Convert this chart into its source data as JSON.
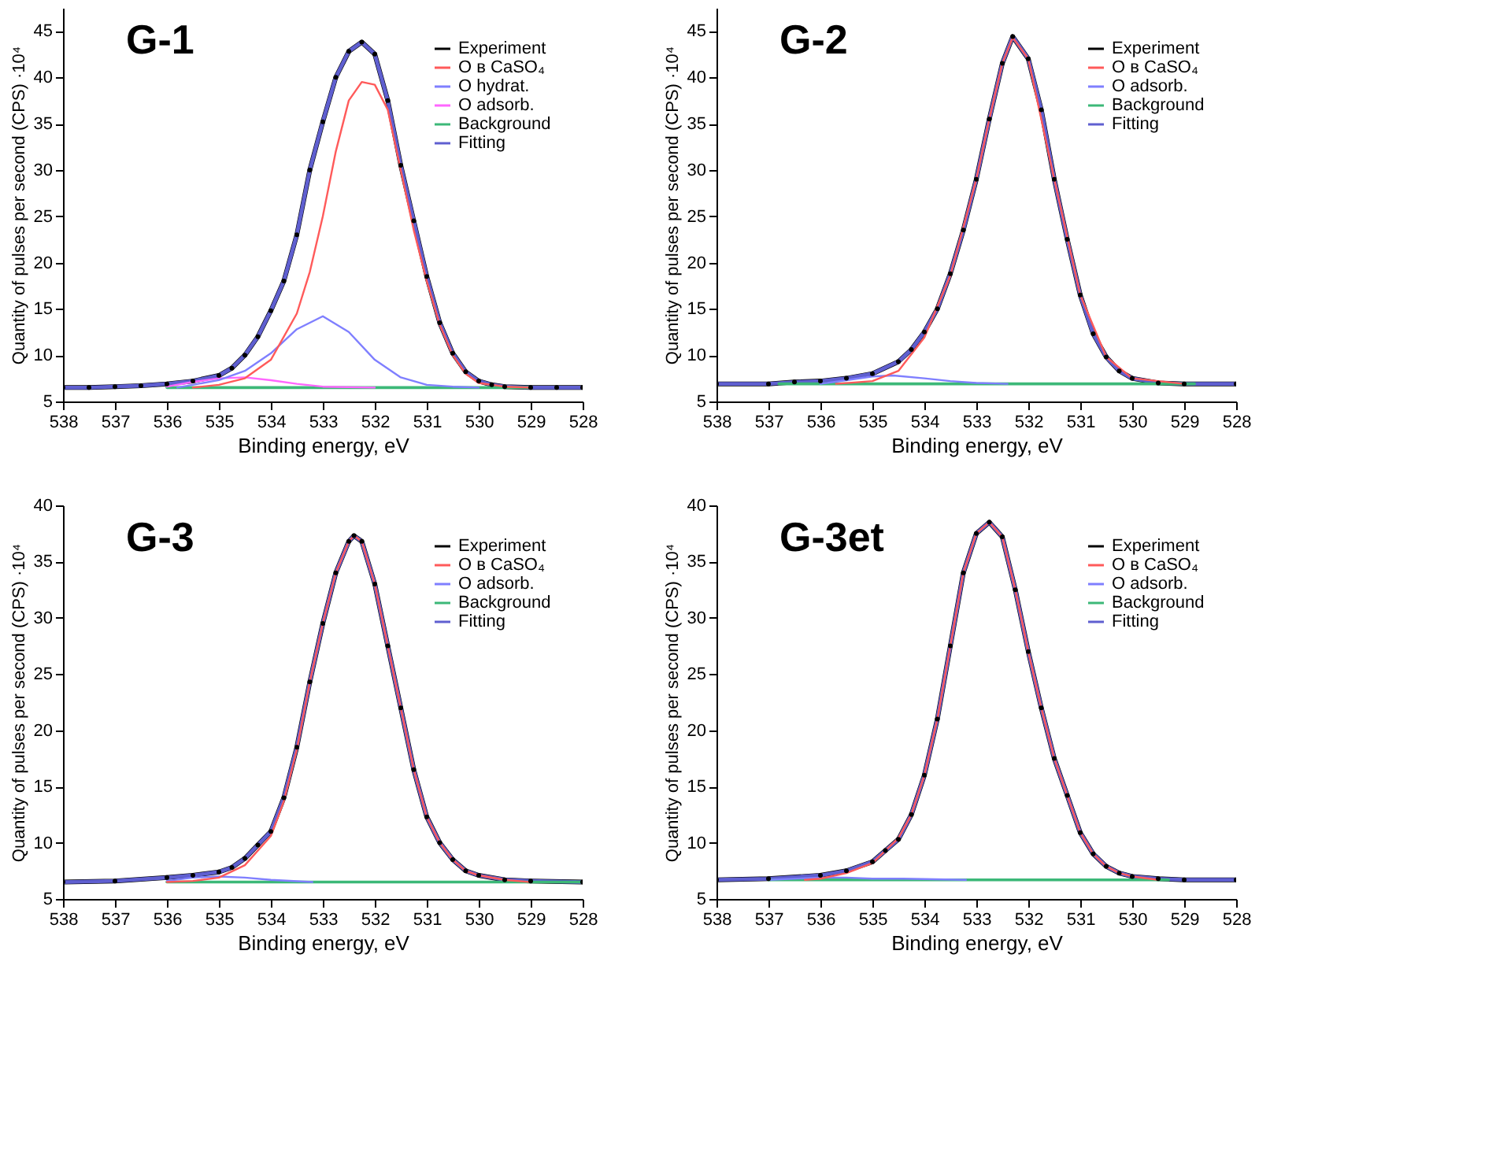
{
  "chart_data": [
    {
      "type": "line",
      "title": "G-1",
      "xlabel": "Binding energy, eV",
      "ylabel": "Quantity of pulses per second  (CPS) ·10⁴",
      "xlim": [
        538,
        528
      ],
      "xticks": [
        538,
        537,
        536,
        535,
        534,
        533,
        532,
        531,
        530,
        529,
        528
      ],
      "ylim": [
        5,
        47.5
      ],
      "yticks": [
        5,
        10,
        15,
        20,
        25,
        30,
        35,
        40,
        45
      ],
      "grid": false,
      "legend": "top right",
      "series": [
        {
          "name": "Experiment",
          "color": "#000000",
          "marker": "circle",
          "x": [
            538,
            537.5,
            537,
            536.5,
            536,
            535.5,
            535,
            534.75,
            534.5,
            534.25,
            534,
            533.75,
            533.5,
            533.25,
            533,
            532.75,
            532.5,
            532.25,
            532,
            531.75,
            531.5,
            531.25,
            531,
            530.75,
            530.5,
            530.25,
            530,
            529.75,
            529.5,
            529,
            528.5,
            528
          ],
          "values": [
            6.5,
            6.5,
            6.6,
            6.7,
            6.9,
            7.2,
            7.8,
            8.6,
            10.0,
            12.0,
            14.8,
            18.0,
            23.0,
            30.0,
            35.2,
            40.0,
            42.8,
            43.8,
            42.5,
            37.5,
            30.5,
            24.5,
            18.5,
            13.5,
            10.2,
            8.2,
            7.2,
            6.8,
            6.6,
            6.5,
            6.5,
            6.5
          ]
        },
        {
          "name": "O в CaSO₄",
          "color": "#ff5a5a",
          "marker": "none",
          "x": [
            535.5,
            535,
            534.5,
            534,
            533.5,
            533.25,
            533,
            532.75,
            532.5,
            532.25,
            532,
            531.75,
            531.5,
            531.25,
            531,
            530.75,
            530.5,
            530.25,
            530,
            529.5,
            529
          ],
          "values": [
            6.5,
            6.8,
            7.5,
            9.5,
            14.5,
            19.0,
            25.0,
            32.0,
            37.5,
            39.5,
            39.2,
            36.5,
            30.0,
            23.5,
            18.0,
            13.3,
            10.0,
            8.0,
            7.0,
            6.6,
            6.5
          ]
        },
        {
          "name": "O hydrat.",
          "color": "#7f7fff",
          "marker": "none",
          "x": [
            535.8,
            535,
            534.5,
            534,
            533.5,
            533,
            532.5,
            532,
            531.5,
            531,
            530.5,
            530
          ],
          "values": [
            6.5,
            7.3,
            8.3,
            10.2,
            12.8,
            14.2,
            12.5,
            9.5,
            7.6,
            6.8,
            6.6,
            6.5
          ]
        },
        {
          "name": "O adsorb.",
          "color": "#ff66ff",
          "marker": "none",
          "x": [
            536,
            535.5,
            535,
            534.5,
            534,
            533.5,
            533,
            532
          ],
          "values": [
            6.6,
            7.1,
            7.5,
            7.6,
            7.3,
            6.9,
            6.6,
            6.5
          ]
        },
        {
          "name": "Background",
          "color": "#3cb878",
          "marker": "none",
          "x": [
            536,
            529
          ],
          "values": [
            6.5,
            6.5
          ]
        },
        {
          "name": "Fitting",
          "color": "#5f5fd0",
          "marker": "none",
          "x": [
            538,
            537.5,
            537,
            536.5,
            536,
            535.5,
            535,
            534.75,
            534.5,
            534.25,
            534,
            533.75,
            533.5,
            533.25,
            533,
            532.75,
            532.5,
            532.25,
            532,
            531.75,
            531.5,
            531.25,
            531,
            530.75,
            530.5,
            530.25,
            530,
            529.75,
            529.5,
            529,
            528.5,
            528
          ],
          "values": [
            6.5,
            6.5,
            6.6,
            6.7,
            6.9,
            7.2,
            7.8,
            8.6,
            10.0,
            12.0,
            14.8,
            18.0,
            23.0,
            30.0,
            35.2,
            40.0,
            42.8,
            43.8,
            42.5,
            37.5,
            30.5,
            24.5,
            18.5,
            13.5,
            10.2,
            8.2,
            7.2,
            6.8,
            6.6,
            6.5,
            6.5,
            6.5
          ]
        }
      ]
    },
    {
      "type": "line",
      "title": "G-2",
      "xlabel": "Binding energy, eV",
      "ylabel": "Quantity of pulses per second  (CPS) ·10⁴",
      "xlim": [
        538,
        528
      ],
      "xticks": [
        538,
        537,
        536,
        535,
        534,
        533,
        532,
        531,
        530,
        529,
        528
      ],
      "ylim": [
        5,
        47.5
      ],
      "yticks": [
        5,
        10,
        15,
        20,
        25,
        30,
        35,
        40,
        45
      ],
      "grid": false,
      "legend": "top right",
      "series": [
        {
          "name": "Experiment",
          "color": "#000000",
          "marker": "circle",
          "x": [
            538,
            537,
            536.5,
            536,
            535.5,
            535,
            534.5,
            534.25,
            534,
            533.75,
            533.5,
            533.25,
            533,
            532.75,
            532.5,
            532.3,
            532,
            531.75,
            531.5,
            531.25,
            531,
            530.75,
            530.5,
            530.25,
            530,
            529.5,
            529,
            528
          ],
          "values": [
            6.9,
            6.9,
            7.1,
            7.2,
            7.5,
            8.0,
            9.3,
            10.6,
            12.5,
            15.0,
            18.8,
            23.5,
            29.0,
            35.5,
            41.5,
            44.4,
            42.0,
            36.5,
            29.0,
            22.5,
            16.5,
            12.3,
            9.8,
            8.3,
            7.5,
            7.0,
            6.9,
            6.9
          ]
        },
        {
          "name": "O в CaSO₄",
          "color": "#ff5a5a",
          "marker": "none",
          "x": [
            535.7,
            535,
            534.5,
            534,
            533.5,
            533,
            532.75,
            532.5,
            532.3,
            532,
            531.5,
            531,
            530.5,
            530,
            529
          ],
          "values": [
            6.9,
            7.2,
            8.3,
            11.9,
            18.6,
            29.0,
            35.5,
            41.5,
            44.3,
            42.0,
            29.0,
            16.5,
            9.8,
            7.5,
            6.9
          ]
        },
        {
          "name": "O adsorb.",
          "color": "#7f7fff",
          "marker": "none",
          "x": [
            536,
            535.5,
            535,
            534.6,
            534,
            533.5,
            533,
            532.4
          ],
          "values": [
            6.9,
            7.3,
            7.7,
            7.8,
            7.5,
            7.2,
            7.0,
            6.9
          ]
        },
        {
          "name": "Background",
          "color": "#3cb878",
          "marker": "none",
          "x": [
            536.8,
            528.8
          ],
          "values": [
            6.9,
            6.9
          ]
        },
        {
          "name": "Fitting",
          "color": "#5f5fd0",
          "marker": "none",
          "x": [
            538,
            537,
            536.5,
            536,
            535.5,
            535,
            534.5,
            534.25,
            534,
            533.75,
            533.5,
            533.25,
            533,
            532.75,
            532.5,
            532.3,
            532,
            531.75,
            531.5,
            531.25,
            531,
            530.75,
            530.5,
            530.25,
            530,
            529.5,
            529,
            528
          ],
          "values": [
            6.9,
            6.9,
            7.1,
            7.2,
            7.5,
            8.0,
            9.3,
            10.6,
            12.5,
            15.0,
            18.8,
            23.5,
            29.0,
            35.5,
            41.5,
            44.4,
            42.0,
            36.5,
            29.0,
            22.5,
            16.5,
            12.3,
            9.8,
            8.3,
            7.5,
            7.0,
            6.9,
            6.9
          ]
        }
      ]
    },
    {
      "type": "line",
      "title": "G-3",
      "xlabel": "Binding energy, eV",
      "ylabel": "Quantity of pulses per second  (CPS) ·10⁴",
      "xlim": [
        538,
        528
      ],
      "xticks": [
        538,
        537,
        536,
        535,
        534,
        533,
        532,
        531,
        530,
        529,
        528
      ],
      "ylim": [
        5,
        40
      ],
      "yticks": [
        5,
        10,
        15,
        20,
        25,
        30,
        35,
        40
      ],
      "grid": false,
      "legend": "top right",
      "series": [
        {
          "name": "Experiment",
          "color": "#000000",
          "marker": "circle",
          "x": [
            538,
            537,
            536,
            535.5,
            535,
            534.75,
            534.5,
            534.25,
            534,
            533.75,
            533.5,
            533.25,
            533,
            532.75,
            532.5,
            532.4,
            532.25,
            532,
            531.75,
            531.5,
            531.25,
            531,
            530.75,
            530.5,
            530.25,
            530,
            529.5,
            529,
            528
          ],
          "values": [
            6.5,
            6.6,
            6.9,
            7.1,
            7.4,
            7.8,
            8.6,
            9.8,
            11.0,
            14.0,
            18.5,
            24.3,
            29.5,
            34.0,
            36.8,
            37.3,
            36.8,
            33.0,
            27.5,
            22.0,
            16.5,
            12.3,
            10.0,
            8.5,
            7.5,
            7.1,
            6.7,
            6.6,
            6.5
          ]
        },
        {
          "name": "O в CaSO₄",
          "color": "#ff5a5a",
          "marker": "none",
          "x": [
            536,
            535.5,
            535,
            534.5,
            534,
            533.75,
            533.5,
            533.25,
            533,
            532.75,
            532.5,
            532.4,
            532.25,
            532,
            531.75,
            531.5,
            531.25,
            531,
            530.75,
            530.5,
            530.25,
            530,
            529.5,
            529
          ],
          "values": [
            6.5,
            6.6,
            6.9,
            8.0,
            10.6,
            13.7,
            18.3,
            24.3,
            29.5,
            34.0,
            36.8,
            37.3,
            36.8,
            33.0,
            27.5,
            22.0,
            16.5,
            12.3,
            10.0,
            8.5,
            7.5,
            7.1,
            6.7,
            6.5
          ]
        },
        {
          "name": "O adsorb.",
          "color": "#7f7fff",
          "marker": "none",
          "x": [
            536,
            535.5,
            535,
            534.5,
            534,
            533.2
          ],
          "values": [
            6.6,
            6.9,
            7.0,
            6.9,
            6.7,
            6.5
          ]
        },
        {
          "name": "Background",
          "color": "#3cb878",
          "marker": "none",
          "x": [
            536,
            528
          ],
          "values": [
            6.5,
            6.5
          ]
        },
        {
          "name": "Fitting",
          "color": "#5f5fd0",
          "marker": "none",
          "x": [
            538,
            537,
            536,
            535.5,
            535,
            534.75,
            534.5,
            534.25,
            534,
            533.75,
            533.5,
            533.25,
            533,
            532.75,
            532.5,
            532.4,
            532.25,
            532,
            531.75,
            531.5,
            531.25,
            531,
            530.75,
            530.5,
            530.25,
            530,
            529.5,
            529,
            528
          ],
          "values": [
            6.5,
            6.6,
            6.9,
            7.1,
            7.4,
            7.8,
            8.6,
            9.8,
            11.0,
            14.0,
            18.5,
            24.3,
            29.5,
            34.0,
            36.8,
            37.3,
            36.8,
            33.0,
            27.5,
            22.0,
            16.5,
            12.3,
            10.0,
            8.5,
            7.5,
            7.1,
            6.7,
            6.6,
            6.5
          ]
        }
      ]
    },
    {
      "type": "line",
      "title": "G-3et",
      "xlabel": "Binding energy, eV",
      "ylabel": "Quantity of pulses per second  (CPS) ·10⁴",
      "xlim": [
        538,
        528
      ],
      "xticks": [
        538,
        537,
        536,
        535,
        534,
        533,
        532,
        531,
        530,
        529,
        528
      ],
      "ylim": [
        5,
        40
      ],
      "yticks": [
        5,
        10,
        15,
        20,
        25,
        30,
        35,
        40
      ],
      "grid": false,
      "legend": "top right",
      "series": [
        {
          "name": "Experiment",
          "color": "#000000",
          "marker": "circle",
          "x": [
            538,
            537,
            536,
            535.5,
            535,
            534.75,
            534.5,
            534.25,
            534,
            533.75,
            533.5,
            533.25,
            533,
            532.75,
            532.5,
            532.25,
            532,
            531.75,
            531.5,
            531.25,
            531,
            530.75,
            530.5,
            530.25,
            530,
            529.5,
            529,
            528
          ],
          "values": [
            6.7,
            6.8,
            7.1,
            7.5,
            8.3,
            9.3,
            10.3,
            12.5,
            16.0,
            21.0,
            27.5,
            34.0,
            37.5,
            38.5,
            37.2,
            32.5,
            27.0,
            22.0,
            17.5,
            14.2,
            10.9,
            9.0,
            7.9,
            7.3,
            7.0,
            6.8,
            6.7,
            6.7
          ]
        },
        {
          "name": "O в CaSO₄",
          "color": "#ff5a5a",
          "marker": "none",
          "x": [
            536.3,
            536,
            535.5,
            535,
            534.5,
            534.25,
            534,
            533.75,
            533.5,
            533.25,
            533,
            532.75,
            532.5,
            532.25,
            532,
            531.75,
            531.5,
            531.25,
            531,
            530.75,
            530.5,
            530.25,
            530,
            529.5
          ],
          "values": [
            6.7,
            6.8,
            7.3,
            8.2,
            10.4,
            12.5,
            16.0,
            21.0,
            27.5,
            34.0,
            37.5,
            38.5,
            37.2,
            32.5,
            27.0,
            22.0,
            17.5,
            14.2,
            10.9,
            9.0,
            7.9,
            7.3,
            7.0,
            6.7
          ]
        },
        {
          "name": "O adsorb.",
          "color": "#7f7fff",
          "marker": "none",
          "x": [
            537,
            536,
            535.5,
            535,
            534.4,
            533.2
          ],
          "values": [
            6.7,
            6.9,
            6.9,
            6.8,
            6.8,
            6.7
          ]
        },
        {
          "name": "Background",
          "color": "#3cb878",
          "marker": "none",
          "x": [
            537,
            529.3
          ],
          "values": [
            6.7,
            6.7
          ]
        },
        {
          "name": "Fitting",
          "color": "#5f5fd0",
          "marker": "none",
          "x": [
            538,
            537,
            536,
            535.5,
            535,
            534.75,
            534.5,
            534.25,
            534,
            533.75,
            533.5,
            533.25,
            533,
            532.75,
            532.5,
            532.25,
            532,
            531.75,
            531.5,
            531.25,
            531,
            530.75,
            530.5,
            530.25,
            530,
            529.5,
            529,
            528
          ],
          "values": [
            6.7,
            6.8,
            7.1,
            7.5,
            8.3,
            9.3,
            10.3,
            12.5,
            16.0,
            21.0,
            27.5,
            34.0,
            37.5,
            38.5,
            37.2,
            32.5,
            27.0,
            22.0,
            17.5,
            14.2,
            10.9,
            9.0,
            7.9,
            7.3,
            7.0,
            6.8,
            6.7,
            6.7
          ]
        }
      ]
    }
  ]
}
